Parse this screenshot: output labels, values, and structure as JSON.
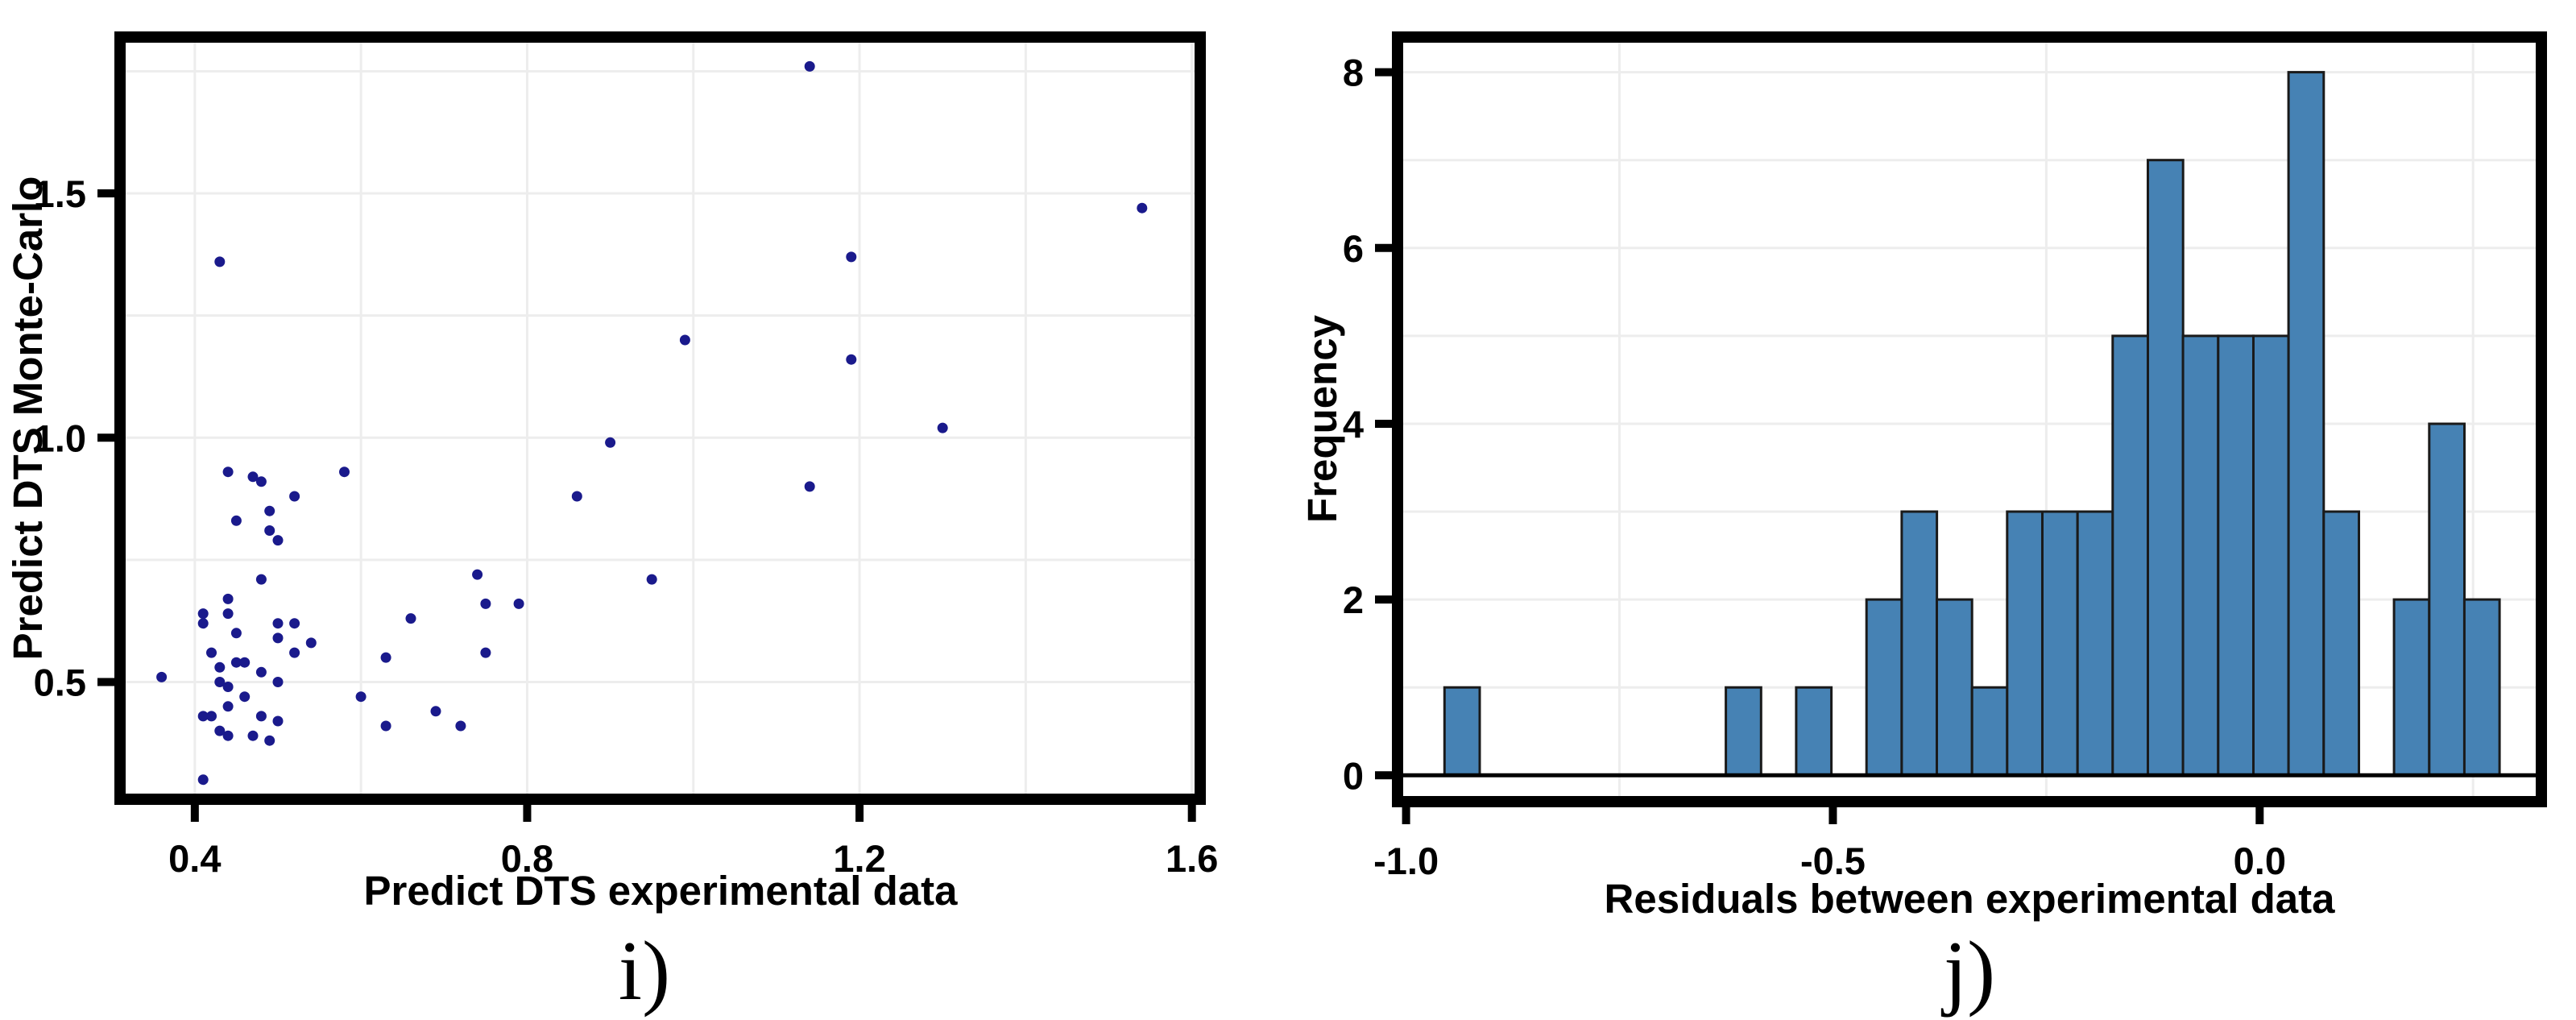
{
  "figure": {
    "background": "#ffffff",
    "text_color": "#000000",
    "grid_color": "#ededed",
    "border_color": "#000000"
  },
  "chart_data": [
    {
      "id": "scatter",
      "type": "scatter",
      "panel_label": "i)",
      "xlabel": "Predict DTS experimental data",
      "ylabel": "Predict DTS Monte-Carlo",
      "xlim": [
        0.31,
        1.61
      ],
      "ylim": [
        0.26,
        1.82
      ],
      "xticks": [
        0.4,
        0.8,
        1.2,
        1.6
      ],
      "xtick_labels": [
        "0.4",
        "0.8",
        "1.2",
        "1.6"
      ],
      "yticks": [
        0.5,
        1.0,
        1.5
      ],
      "ytick_labels": [
        "0.5",
        "1.0",
        "1.5"
      ],
      "x_gridlines": [
        0.4,
        0.6,
        0.8,
        1.0,
        1.2,
        1.4,
        1.6
      ],
      "y_gridlines": [
        0.5,
        0.75,
        1.0,
        1.25,
        1.5,
        1.75
      ],
      "grid": true,
      "legend": "none",
      "point_color": "#1a1a8c",
      "point_radius": 6.5,
      "points": [
        [
          1.14,
          1.76
        ],
        [
          1.54,
          1.47
        ],
        [
          1.19,
          1.37
        ],
        [
          0.43,
          1.36
        ],
        [
          0.99,
          1.2
        ],
        [
          1.19,
          1.16
        ],
        [
          1.3,
          1.02
        ],
        [
          0.9,
          0.99
        ],
        [
          0.44,
          0.93
        ],
        [
          0.58,
          0.93
        ],
        [
          0.47,
          0.92
        ],
        [
          0.48,
          0.91
        ],
        [
          0.52,
          0.88
        ],
        [
          0.86,
          0.88
        ],
        [
          1.14,
          0.9
        ],
        [
          0.49,
          0.85
        ],
        [
          0.45,
          0.83
        ],
        [
          0.49,
          0.81
        ],
        [
          0.5,
          0.79
        ],
        [
          0.48,
          0.71
        ],
        [
          0.74,
          0.72
        ],
        [
          0.95,
          0.71
        ],
        [
          0.44,
          0.67
        ],
        [
          0.44,
          0.64
        ],
        [
          0.41,
          0.64
        ],
        [
          0.41,
          0.62
        ],
        [
          0.52,
          0.62
        ],
        [
          0.5,
          0.62
        ],
        [
          0.66,
          0.63
        ],
        [
          0.75,
          0.66
        ],
        [
          0.79,
          0.66
        ],
        [
          0.45,
          0.6
        ],
        [
          0.5,
          0.59
        ],
        [
          0.54,
          0.58
        ],
        [
          0.52,
          0.56
        ],
        [
          0.63,
          0.55
        ],
        [
          0.75,
          0.56
        ],
        [
          0.42,
          0.56
        ],
        [
          0.45,
          0.54
        ],
        [
          0.46,
          0.54
        ],
        [
          0.48,
          0.52
        ],
        [
          0.43,
          0.53
        ],
        [
          0.36,
          0.51
        ],
        [
          0.43,
          0.5
        ],
        [
          0.44,
          0.49
        ],
        [
          0.5,
          0.5
        ],
        [
          0.46,
          0.47
        ],
        [
          0.6,
          0.47
        ],
        [
          0.44,
          0.45
        ],
        [
          0.41,
          0.43
        ],
        [
          0.42,
          0.43
        ],
        [
          0.48,
          0.43
        ],
        [
          0.69,
          0.44
        ],
        [
          0.5,
          0.42
        ],
        [
          0.43,
          0.4
        ],
        [
          0.44,
          0.39
        ],
        [
          0.47,
          0.39
        ],
        [
          0.63,
          0.41
        ],
        [
          0.72,
          0.41
        ],
        [
          0.49,
          0.38
        ],
        [
          0.41,
          0.3
        ]
      ]
    },
    {
      "id": "histogram",
      "type": "bar",
      "panel_label": "j)",
      "xlabel": "Residuals between experimental data",
      "ylabel": "Frequency",
      "xlim": [
        -1.01,
        0.33
      ],
      "ylim": [
        -0.3,
        8.4
      ],
      "xticks": [
        -1.0,
        -0.5,
        0.0
      ],
      "xtick_labels": [
        "-1.0",
        "-0.5",
        "0.0"
      ],
      "yticks": [
        0,
        2,
        4,
        6,
        8
      ],
      "ytick_labels": [
        "0",
        "2",
        "4",
        "6",
        "8"
      ],
      "x_gridlines": [
        -0.75,
        -0.25,
        0.25
      ],
      "y_gridlines": [
        1,
        2,
        3,
        4,
        5,
        6,
        7,
        8
      ],
      "grid": true,
      "legend": "none",
      "bin_start": -0.955,
      "bin_width": 0.0412,
      "counts": [
        1,
        0,
        0,
        0,
        0,
        0,
        0,
        0,
        1,
        0,
        1,
        0,
        2,
        3,
        2,
        1,
        3,
        3,
        3,
        5,
        7,
        5,
        5,
        5,
        8,
        3,
        0,
        2,
        4,
        2
      ],
      "bar_color": "#4682b4",
      "bar_edge_color": "#1a1a1a",
      "bar_edge_width": 3
    }
  ]
}
